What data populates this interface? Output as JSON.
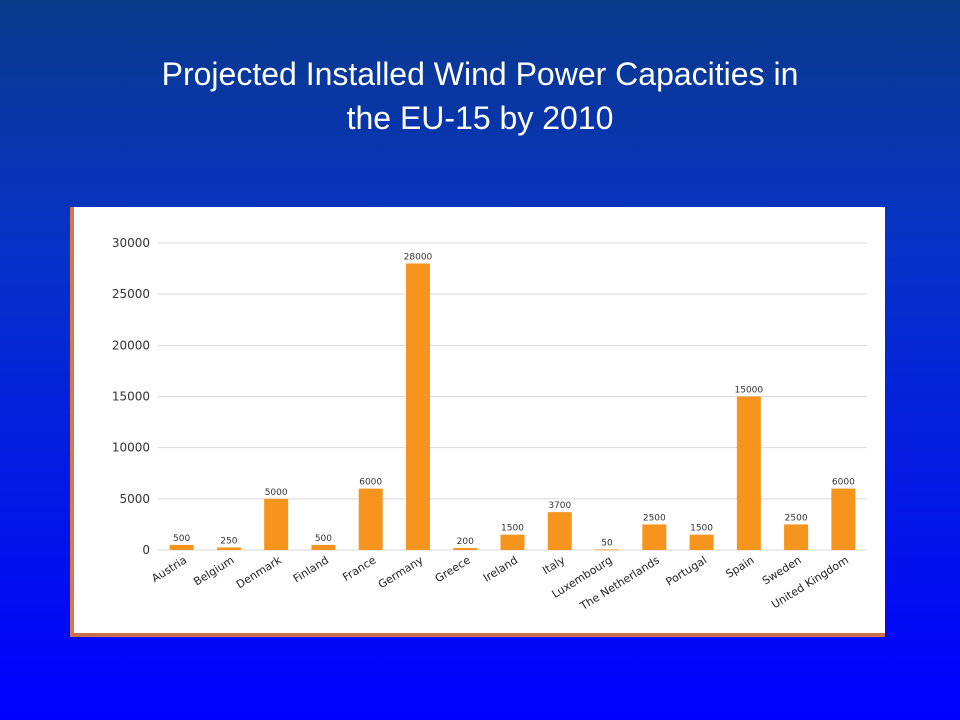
{
  "slide": {
    "title_line1": "Projected Installed Wind Power Capacities in",
    "title_line2": "the EU-15 by 2010"
  },
  "colors": {
    "bar": "#f7941d",
    "grid": "#d9d9d9",
    "frame_border": "#d9774a"
  },
  "chart_data": {
    "type": "bar",
    "title": "Projected Installed Wind Power Capacities in the EU-15 by 2010",
    "xlabel": "",
    "ylabel": "",
    "ylim": [
      0,
      30000
    ],
    "yticks": [
      0,
      5000,
      10000,
      15000,
      20000,
      25000,
      30000
    ],
    "grid": true,
    "categories": [
      "Austria",
      "Belgium",
      "Denmark",
      "Finland",
      "France",
      "Germany",
      "Greece",
      "Ireland",
      "Italy",
      "Luxembourg",
      "The Netherlands",
      "Portugal",
      "Spain",
      "Sweden",
      "United Kingdom"
    ],
    "values": [
      500,
      250,
      5000,
      500,
      6000,
      28000,
      200,
      1500,
      3700,
      50,
      2500,
      1500,
      15000,
      2500,
      6000
    ]
  }
}
